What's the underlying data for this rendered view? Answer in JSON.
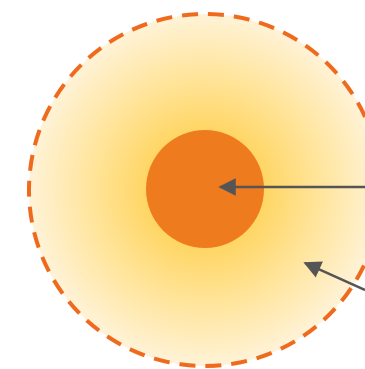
{
  "colors": {
    "background": "#ffffff",
    "halo_center": "#ffc62a",
    "halo_mid": "#ffe08a",
    "halo_edge": "#fff3d8",
    "halo_border": "#ef6a1c",
    "core": "#ef7b1f",
    "arrow": "#555555"
  },
  "icons": {
    "core": "filled-circle",
    "halo": "radial-gradient-circle-dashed-border",
    "arrows": "arrow-left"
  }
}
